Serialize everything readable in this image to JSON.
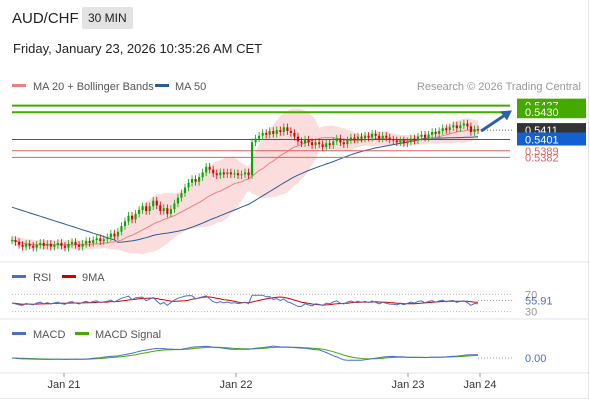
{
  "header": {
    "symbol": "AUD/CHF",
    "timeframe": "30 MIN",
    "datetime": "Friday, January 23, 2026 10:35:26 AM CET"
  },
  "colors": {
    "up": "#00aa00",
    "down": "#dd0000",
    "ma20": "#f08080",
    "ma50": "#2a5b9a",
    "band": "#f9cfcf",
    "target": "#44aa00",
    "support": "#e06060",
    "rsi": "#4a6ecf",
    "rsi_ma": "#d00000",
    "macd": "#4a6ecf",
    "macd_signal": "#44aa00",
    "arrow": "#2a62a8"
  },
  "chart_data": [
    {
      "type": "candlestick",
      "title": "AUD/CHF 30 MIN",
      "legend": [
        "MA 20 + Bollinger Bands",
        "MA 50"
      ],
      "source": "Research © 2026 Trading Central",
      "x_ticks": [
        "Jan 21",
        "Jan 22",
        "Jan 23",
        "Jan 24"
      ],
      "ylim": [
        0.5275,
        0.5443
      ],
      "price_labels": [
        {
          "value": 0.5437,
          "text": "0.5437",
          "kind": "target"
        },
        {
          "value": 0.543,
          "text": "0.5430",
          "kind": "target2"
        },
        {
          "value": 0.5411,
          "text": "0.5411",
          "kind": "last"
        },
        {
          "value": 0.5401,
          "text": "0.5401",
          "kind": "ma50"
        },
        {
          "value": 0.5389,
          "text": "0.5389",
          "kind": "support"
        },
        {
          "value": 0.5382,
          "text": "0.5382",
          "kind": "support"
        }
      ],
      "close": [
        0.5294,
        0.5292,
        0.5289,
        0.5287,
        0.529,
        0.5288,
        0.5286,
        0.5289,
        0.5291,
        0.5288,
        0.529,
        0.5287,
        0.5289,
        0.5291,
        0.5288,
        0.5286,
        0.529,
        0.5292,
        0.5289,
        0.5287,
        0.529,
        0.5293,
        0.5291,
        0.5294,
        0.5296,
        0.5293,
        0.5295,
        0.5297,
        0.5301,
        0.5298,
        0.5303,
        0.5309,
        0.5314,
        0.532,
        0.5316,
        0.5322,
        0.5326,
        0.533,
        0.5325,
        0.533,
        0.5336,
        0.5331,
        0.5325,
        0.5328,
        0.5322,
        0.5327,
        0.5333,
        0.5339,
        0.5344,
        0.535,
        0.5355,
        0.5359,
        0.5356,
        0.5361,
        0.5366,
        0.5372,
        0.5369,
        0.5365,
        0.5363,
        0.5366,
        0.5364,
        0.5366,
        0.5364,
        0.5365,
        0.5363,
        0.5364,
        0.5366,
        0.5363,
        0.5398,
        0.5402,
        0.5405,
        0.5408,
        0.5406,
        0.541,
        0.5407,
        0.5411,
        0.5409,
        0.5414,
        0.541,
        0.5408,
        0.5404,
        0.5399,
        0.5397,
        0.5401,
        0.5398,
        0.5395,
        0.5398,
        0.5396,
        0.5393,
        0.5397,
        0.5395,
        0.5399,
        0.5402,
        0.5398,
        0.5396,
        0.54,
        0.5403,
        0.5401,
        0.5404,
        0.5402,
        0.5405,
        0.5403,
        0.5407,
        0.5405,
        0.5402,
        0.5405,
        0.5403,
        0.5401,
        0.54,
        0.5398,
        0.54,
        0.5397,
        0.5399,
        0.5402,
        0.54,
        0.5404,
        0.5406,
        0.5403,
        0.5406,
        0.5409,
        0.5407,
        0.541,
        0.5413,
        0.5411,
        0.5414,
        0.5416,
        0.5413,
        0.5416,
        0.5418,
        0.5415,
        0.5409,
        0.5412,
        0.5411
      ],
      "ma20": [
        0.5294,
        0.5293,
        0.5292,
        0.5291,
        0.529,
        0.529,
        0.5289,
        0.5289,
        0.5289,
        0.5289,
        0.5289,
        0.5289,
        0.5289,
        0.5289,
        0.5289,
        0.5289,
        0.5289,
        0.5289,
        0.5289,
        0.5289,
        0.5289,
        0.5289,
        0.5289,
        0.529,
        0.529,
        0.529,
        0.5291,
        0.5291,
        0.5292,
        0.5292,
        0.5293,
        0.5294,
        0.5296,
        0.5298,
        0.5299,
        0.5301,
        0.5303,
        0.5305,
        0.5307,
        0.5309,
        0.5311,
        0.5313,
        0.5314,
        0.5316,
        0.5317,
        0.5319,
        0.532,
        0.5322,
        0.5324,
        0.5326,
        0.5328,
        0.533,
        0.5332,
        0.5334,
        0.5336,
        0.5339,
        0.5341,
        0.5343,
        0.5345,
        0.5346,
        0.5348,
        0.535,
        0.5352,
        0.5354,
        0.5355,
        0.5356,
        0.5358,
        0.5359,
        0.5362,
        0.5365,
        0.5368,
        0.537,
        0.5373,
        0.5376,
        0.5378,
        0.5381,
        0.5384,
        0.5386,
        0.5388,
        0.5391,
        0.5393,
        0.5394,
        0.5396,
        0.5397,
        0.5399,
        0.54,
        0.5401,
        0.5402,
        0.5403,
        0.5403,
        0.5403,
        0.5403,
        0.5402,
        0.5402,
        0.5401,
        0.54,
        0.54,
        0.54,
        0.54,
        0.54,
        0.5401,
        0.5401,
        0.5401,
        0.5402,
        0.5402,
        0.5402,
        0.5402,
        0.5401,
        0.5401,
        0.5401,
        0.54,
        0.54,
        0.54,
        0.54,
        0.54,
        0.5401,
        0.5401,
        0.5401,
        0.5402,
        0.5403,
        0.5403,
        0.5404,
        0.5405,
        0.5406,
        0.5407,
        0.5408,
        0.5409,
        0.541,
        0.541,
        0.5411,
        0.5411,
        0.5411,
        0.5411
      ]
    },
    {
      "type": "line",
      "title": "RSI",
      "series": [
        {
          "name": "RSI"
        },
        {
          "name": "9MA"
        }
      ],
      "levels": [
        70,
        30
      ],
      "last_value": "55.91",
      "ylim": [
        20,
        80
      ]
    },
    {
      "type": "line",
      "title": "MACD",
      "series": [
        {
          "name": "MACD"
        },
        {
          "name": "MACD Signal"
        }
      ],
      "last_value": "0.00"
    }
  ]
}
